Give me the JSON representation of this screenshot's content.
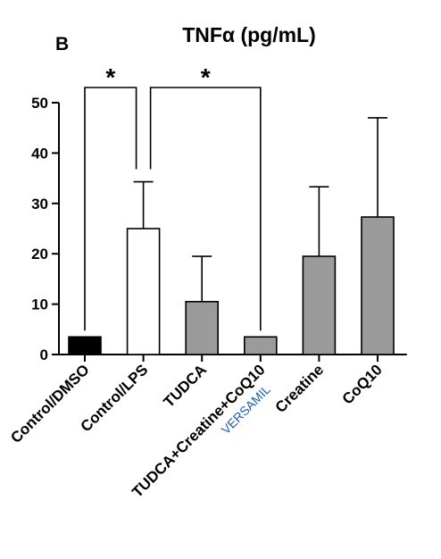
{
  "panel_label": "B",
  "chart_data": {
    "type": "bar",
    "title": "TNFα (pg/mL)",
    "xlabel": "",
    "ylabel": "",
    "ylim": [
      0,
      50
    ],
    "yticks": [
      0,
      10,
      20,
      30,
      40,
      50
    ],
    "grid": false,
    "legend": "none",
    "categories": [
      "Control/DMSO",
      "Control/LPS",
      "TUDCA",
      "TUDCA+Creatine+CoQ10",
      "Creatine",
      "CoQ10"
    ],
    "sublabels": [
      "",
      "",
      "",
      "VERSAMIL",
      "",
      ""
    ],
    "sublabel_color": "#1f5fa8",
    "values": [
      3.5,
      25,
      10.5,
      3.5,
      19.5,
      27.3
    ],
    "error_upper": [
      3.5,
      34.3,
      19.5,
      3.5,
      33.3,
      47
    ],
    "bar_fill": [
      "#000000",
      "#ffffff",
      "#9b9b9b",
      "#9b9b9b",
      "#9b9b9b",
      "#9b9b9b"
    ],
    "significance": [
      {
        "from": 0,
        "to": 1,
        "label": "*"
      },
      {
        "from": 1,
        "to": 3,
        "label": "*"
      }
    ]
  }
}
